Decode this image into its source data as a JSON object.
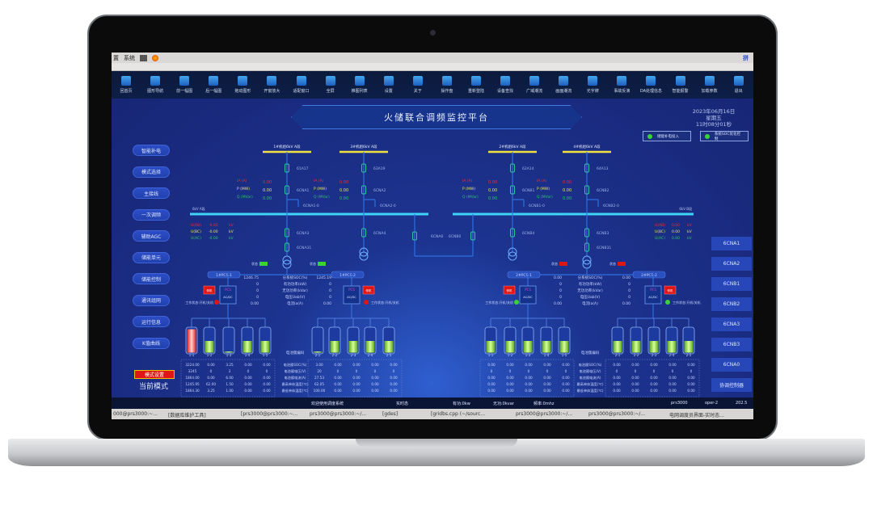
{
  "os": {
    "menu": [
      "置",
      "系统"
    ],
    "tray": "拼"
  },
  "toolbar": [
    "回首页",
    "图形导航",
    "前一幅图",
    "后一幅图",
    "拖动图形",
    "开窗放大",
    "适配窗口",
    "全屏",
    "推图列表",
    "设置",
    "关于",
    "操作盘",
    "重新登陆",
    "设备查找",
    "广域潮流",
    "画面潮流",
    "光字牌",
    "事故反演",
    "DA处理信息",
    "智能报警",
    "加载参数",
    "退出"
  ],
  "header": {
    "title": "火储联合调频监控平台",
    "date": "2023年06月16日",
    "weekday": "星期五",
    "time": "11时08分01秒",
    "indicators": [
      {
        "label": "储能补电投入",
        "color": "#3ad13a"
      },
      {
        "label": "系统SOC优化控制",
        "color": "#3ad13a"
      }
    ]
  },
  "left_menu": [
    "智能补电",
    "模式选择",
    "主接线",
    "一次调频",
    "辅助AGC",
    "储能单元",
    "储能控制",
    "通讯组网",
    "运行信息",
    "K值曲线"
  ],
  "mode_button": "模式设置",
  "current_mode": "当前模式",
  "right_menu": [
    "6CNA1",
    "6CNA2",
    "6CNB1",
    "6CNB2",
    "6CNA3",
    "6CNB3",
    "6CNA0",
    "协调控制器"
  ],
  "schematic": {
    "feeders": [
      {
        "bus": "1#机组6kV A段",
        "top": "61A17",
        "mid": "6CNA1",
        "earth": "6CNA1-0",
        "low": [
          "6CNA3",
          "6CNA31"
        ]
      },
      {
        "bus": "3#机组6kV A段",
        "top": "63A19",
        "mid": "6CNA2",
        "earth": "6CNA2-0",
        "low": [
          "6CNA4"
        ]
      },
      {
        "bus": "2#机组6kV A段",
        "top": "62A14",
        "mid": "6CNB1",
        "earth": "6CNB1-0",
        "low": [
          "6CNB4"
        ]
      },
      {
        "bus": "4#机组6kV A段",
        "top": "64A13",
        "mid": "6CNB2",
        "earth": "6CNB2-0",
        "low": [
          "6CNB3",
          "6CNB31"
        ]
      }
    ],
    "feeder_meas": [
      {
        "label": "IA (A)",
        "value": "0.00",
        "color": "#e0323c"
      },
      {
        "label": "P (MW)",
        "value": "0.00",
        "color": "#e8e070"
      },
      {
        "label": "Q (MVar)",
        "value": "0.00",
        "color": "#2ec46a"
      }
    ],
    "tie": [
      "6CNA0",
      "6CNB0"
    ],
    "buses": [
      {
        "label": "6kV A段",
        "meas": [
          {
            "label": "U(AB)",
            "value": "-0.00",
            "unit": "kV"
          },
          {
            "label": "U(BC)",
            "value": "-0.00",
            "unit": "kV"
          },
          {
            "label": "U(AC)",
            "value": "-0.00",
            "unit": "kV"
          }
        ]
      },
      {
        "label": "6kV B段",
        "meas": [
          {
            "label": "U(AB)",
            "value": "0.00",
            "unit": "kV"
          },
          {
            "label": "U(BC)",
            "value": "0.00",
            "unit": "kV"
          },
          {
            "label": "U(AC)",
            "value": "0.00",
            "unit": "kV"
          }
        ]
      }
    ],
    "state_label": "状态",
    "pcs_label": "PCS",
    "lamp_label": "工作状态:开机/关机",
    "pcs_status_text": "停机",
    "meas_labels": [
      "分系统SOC(%)",
      "有功功率(kW)",
      "无功功率(kVar)",
      "电压Uab(V)",
      "电流Ia(A)"
    ],
    "cluster_code": "电池簇编码",
    "table_labels": [
      "电池簇SOC(%)",
      "电池簇电压(V)",
      "电池簇电流(A)",
      "最高单体温度(℃)",
      "最低单体温度(℃)"
    ],
    "groups": [
      {
        "pcs": [
          {
            "name": "1#PCS-1",
            "state_color": "#3ad13a",
            "lamp": "#e01616",
            "values": [
              "1246.75",
              "0",
              "0",
              "0",
              "0.00"
            ],
            "batteries": [
              {
                "id": "1-1",
                "soc": 1.0,
                "alarm": true
              },
              {
                "id": "1-2",
                "soc": 0.5
              },
              {
                "id": "1-3",
                "soc": 0.05
              },
              {
                "id": "1-4",
                "soc": 0.5
              },
              {
                "id": "1-5",
                "soc": 0.5
              }
            ],
            "table": [
              [
                "3224.00",
                "0.00",
                "3.25",
                "0.00",
                "0.00"
              ],
              [
                "3245",
                "0",
                "3",
                "0",
                "0"
              ],
              [
                "1864.00",
                "0.00",
                "6.00",
                "0.00",
                "0.00"
              ],
              [
                "1245.95",
                "62.00",
                "1.50",
                "0.00",
                "0.00"
              ],
              [
                "1864.30",
                "3.25",
                "1.00",
                "0.00",
                "0.00"
              ]
            ]
          },
          {
            "name": "1#PCS-2",
            "state_color": "#3ad13a",
            "lamp": "#e01616",
            "values": [
              "1245.19",
              "0",
              "0",
              "0",
              "0.00"
            ],
            "batteries": [
              {
                "id": "2-1",
                "soc": 0.05
              },
              {
                "id": "2-2",
                "soc": 0.5
              },
              {
                "id": "2-3",
                "soc": 0.5
              },
              {
                "id": "2-4",
                "soc": 0.5
              },
              {
                "id": "2-5",
                "soc": 0.5
              }
            ],
            "table": [
              [
                "3.00",
                "0.00",
                "0.00",
                "0.00",
                "0.00"
              ],
              [
                "20",
                "0",
                "0",
                "0",
                "0"
              ],
              [
                "27.53",
                "0.00",
                "0.00",
                "0.00",
                "0.00"
              ],
              [
                "62.05",
                "0.00",
                "0.00",
                "0.00",
                "0.00"
              ],
              [
                "100.00",
                "0.00",
                "0.00",
                "0.00",
                "0.00"
              ]
            ]
          }
        ]
      },
      {
        "pcs": [
          {
            "name": "2#PCS-1",
            "state_color": "#e01616",
            "lamp": "#3ad13a",
            "values": [
              "0.00",
              "0",
              "0",
              "0",
              "0.00"
            ],
            "batteries": [
              {
                "id": "1-1",
                "soc": 0.5
              },
              {
                "id": "1-2",
                "soc": 0.5
              },
              {
                "id": "1-3",
                "soc": 0.5
              },
              {
                "id": "1-4",
                "soc": 0.5
              },
              {
                "id": "1-5",
                "soc": 0.5
              }
            ],
            "table": [
              [
                "0.00",
                "0.00",
                "0.00",
                "0.00",
                "0.00"
              ],
              [
                "0",
                "0",
                "0",
                "0",
                "0"
              ],
              [
                "0.00",
                "0.00",
                "0.00",
                "0.00",
                "0.00"
              ],
              [
                "0.00",
                "0.00",
                "0.00",
                "0.00",
                "0.00"
              ],
              [
                "0.00",
                "0.00",
                "0.00",
                "0.00",
                "0.00"
              ]
            ]
          },
          {
            "name": "2#PCS-2",
            "state_color": "#e01616",
            "lamp": "#3ad13a",
            "values": [
              "0.00",
              "0",
              "0",
              "0",
              "0.00"
            ],
            "batteries": [
              {
                "id": "2-1",
                "soc": 0.5
              },
              {
                "id": "2-2",
                "soc": 0.5
              },
              {
                "id": "2-3",
                "soc": 0.5
              },
              {
                "id": "2-4",
                "soc": 0.5
              },
              {
                "id": "2-5",
                "soc": 0.5
              }
            ],
            "table": [
              [
                "0.00",
                "0.00",
                "0.00",
                "0.00",
                "0.00"
              ],
              [
                "0",
                "0",
                "0",
                "0",
                "0"
              ],
              [
                "0.00",
                "0.00",
                "0.00",
                "0.00",
                "0.00"
              ],
              [
                "0.00",
                "0.00",
                "0.00",
                "0.00",
                "0.00"
              ],
              [
                "0.00",
                "0.00",
                "0.00",
                "0.00",
                "0.00"
              ]
            ]
          }
        ]
      }
    ]
  },
  "statusbar": [
    "欢迎使用调度系统",
    "实时态",
    "有功:0kw",
    "无功:0kvar",
    "频率:0mhz",
    "prs3000",
    "oper-2",
    "202.5"
  ],
  "taskbar": [
    "000@prs3000:~...",
    "[数据库维护工具]",
    "[prs3000@prs3000:~...",
    "prs3000@prs3000:~/...",
    "[gdes]",
    "[gridbs.cpp (~/sourc...",
    "prs3000@prs3000:~/...",
    "prs3000@prs3000:~/...",
    "电网调度员界面-实时态..."
  ],
  "colors": {
    "bus_cyan": "#3fd4f5",
    "bus_yellow": "#f0e040",
    "line": "#2f6fe0",
    "battery_fill": "#7ed321",
    "alarm": "#e01616"
  }
}
